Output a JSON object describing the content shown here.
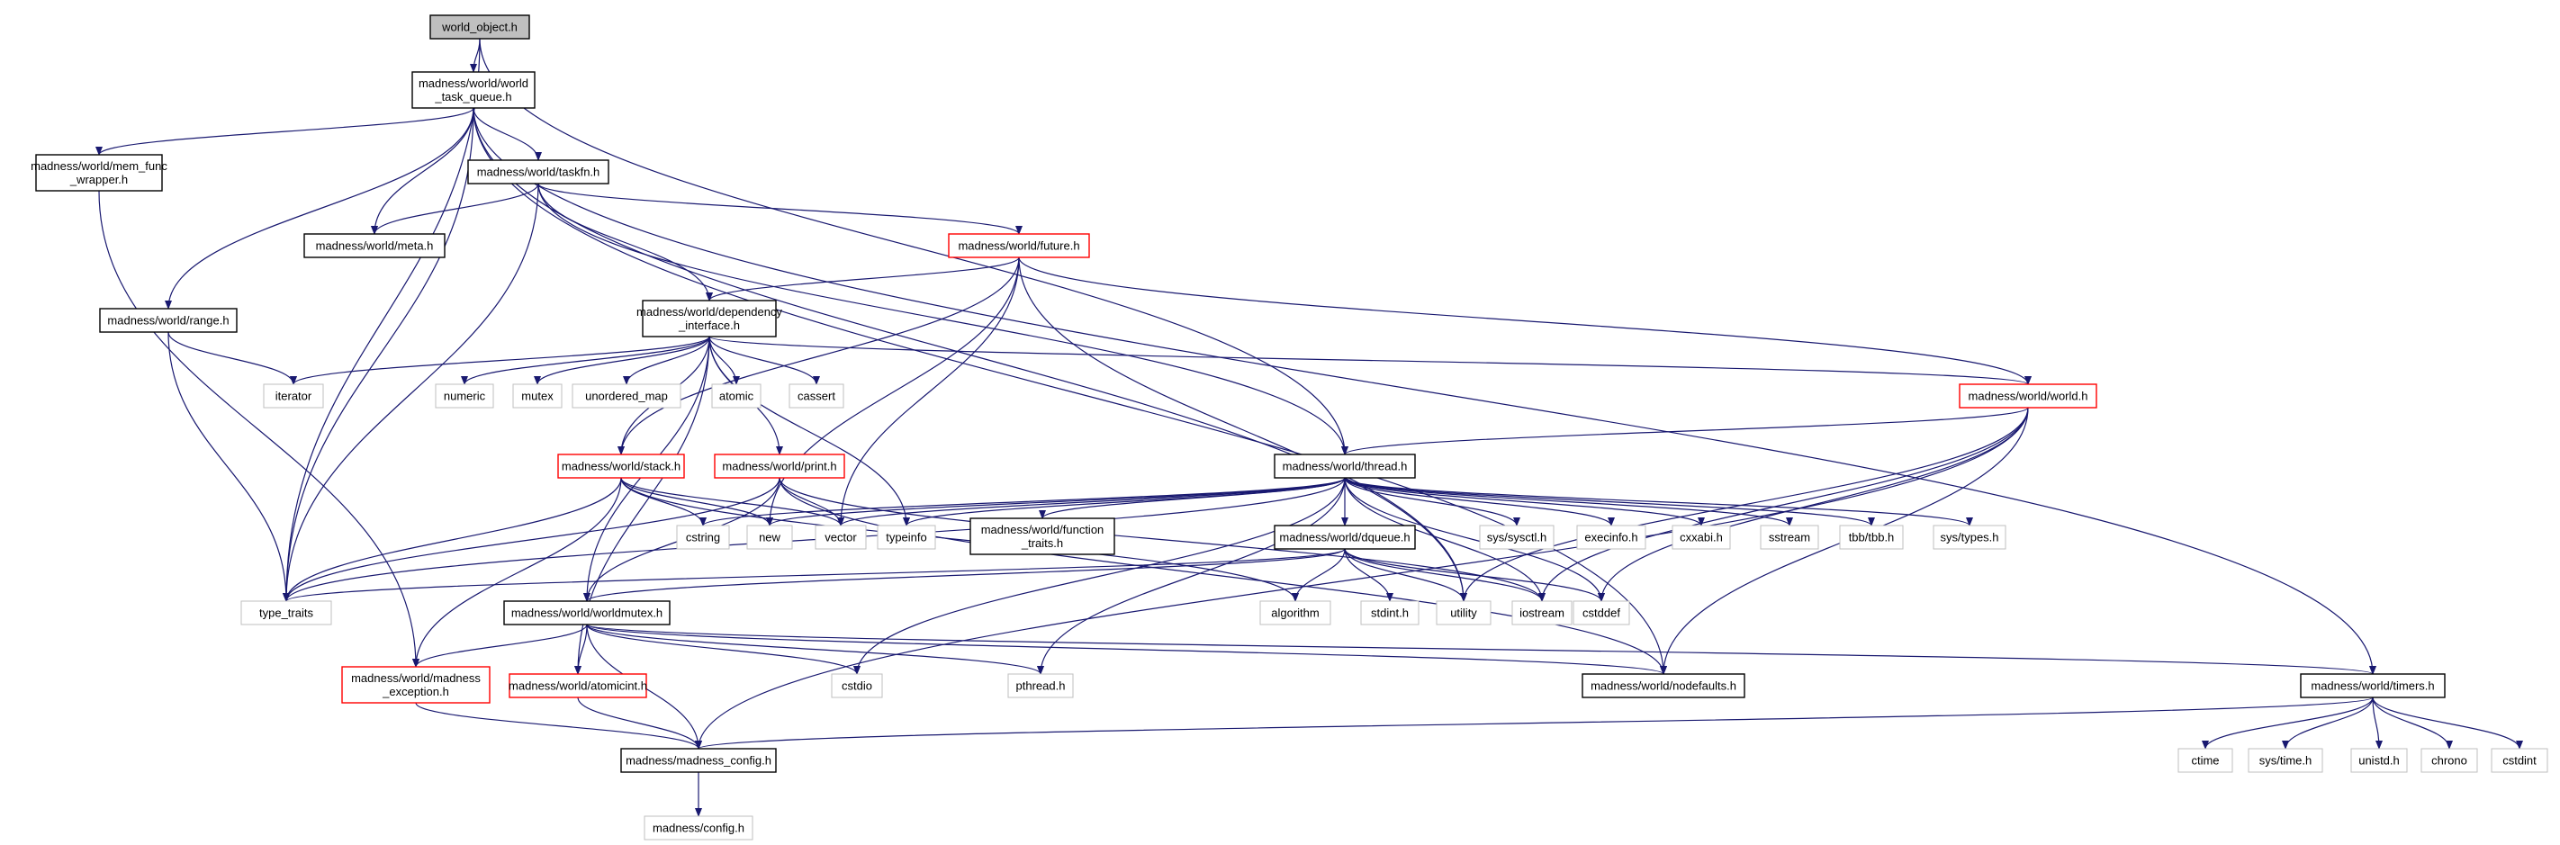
{
  "colors": {
    "edge": "#191970",
    "border_default": "#000000",
    "border_truncated": "#ff0000",
    "border_external": "#bfbfbf",
    "fill_root": "#bfbfbf",
    "fill_default": "#ffffff"
  },
  "nodes": [
    {
      "id": "world_object",
      "label": [
        "world_object.h"
      ],
      "kind": "root"
    },
    {
      "id": "task_queue",
      "label": [
        "madness/world/world",
        "_task_queue.h"
      ],
      "kind": "normal"
    },
    {
      "id": "mem_func",
      "label": [
        "madness/world/mem_func",
        "_wrapper.h"
      ],
      "kind": "normal"
    },
    {
      "id": "taskfn",
      "label": [
        "madness/world/taskfn.h"
      ],
      "kind": "normal"
    },
    {
      "id": "meta",
      "label": [
        "madness/world/meta.h"
      ],
      "kind": "normal"
    },
    {
      "id": "future",
      "label": [
        "madness/world/future.h"
      ],
      "kind": "truncated"
    },
    {
      "id": "range",
      "label": [
        "madness/world/range.h"
      ],
      "kind": "normal"
    },
    {
      "id": "dependency",
      "label": [
        "madness/world/dependency",
        "_interface.h"
      ],
      "kind": "normal"
    },
    {
      "id": "iterator",
      "label": [
        "iterator"
      ],
      "kind": "external"
    },
    {
      "id": "numeric",
      "label": [
        "numeric"
      ],
      "kind": "external"
    },
    {
      "id": "mutex",
      "label": [
        "mutex"
      ],
      "kind": "external"
    },
    {
      "id": "unordered_map",
      "label": [
        "unordered_map"
      ],
      "kind": "external"
    },
    {
      "id": "atomic",
      "label": [
        "atomic"
      ],
      "kind": "external"
    },
    {
      "id": "cassert",
      "label": [
        "cassert"
      ],
      "kind": "external"
    },
    {
      "id": "world_h",
      "label": [
        "madness/world/world.h"
      ],
      "kind": "truncated"
    },
    {
      "id": "thread",
      "label": [
        "madness/world/thread.h"
      ],
      "kind": "normal"
    },
    {
      "id": "stack",
      "label": [
        "madness/world/stack.h"
      ],
      "kind": "truncated"
    },
    {
      "id": "print",
      "label": [
        "madness/world/print.h"
      ],
      "kind": "truncated"
    },
    {
      "id": "cstring",
      "label": [
        "cstring"
      ],
      "kind": "external"
    },
    {
      "id": "new",
      "label": [
        "new"
      ],
      "kind": "external"
    },
    {
      "id": "vector",
      "label": [
        "vector"
      ],
      "kind": "external"
    },
    {
      "id": "typeinfo",
      "label": [
        "typeinfo"
      ],
      "kind": "external"
    },
    {
      "id": "function_traits",
      "label": [
        "madness/world/function",
        "_traits.h"
      ],
      "kind": "normal"
    },
    {
      "id": "dqueue",
      "label": [
        "madness/world/dqueue.h"
      ],
      "kind": "normal"
    },
    {
      "id": "sys_sysctl",
      "label": [
        "sys/sysctl.h"
      ],
      "kind": "external"
    },
    {
      "id": "execinfo",
      "label": [
        "execinfo.h"
      ],
      "kind": "external"
    },
    {
      "id": "cxxabi",
      "label": [
        "cxxabi.h"
      ],
      "kind": "external"
    },
    {
      "id": "sstream",
      "label": [
        "sstream"
      ],
      "kind": "external"
    },
    {
      "id": "tbb",
      "label": [
        "tbb/tbb.h"
      ],
      "kind": "external"
    },
    {
      "id": "sys_types",
      "label": [
        "sys/types.h"
      ],
      "kind": "external"
    },
    {
      "id": "type_traits",
      "label": [
        "type_traits"
      ],
      "kind": "external"
    },
    {
      "id": "algorithm",
      "label": [
        "algorithm"
      ],
      "kind": "external"
    },
    {
      "id": "stdint",
      "label": [
        "stdint.h"
      ],
      "kind": "external"
    },
    {
      "id": "utility",
      "label": [
        "utility"
      ],
      "kind": "external"
    },
    {
      "id": "iostream",
      "label": [
        "iostream"
      ],
      "kind": "external"
    },
    {
      "id": "cstddef",
      "label": [
        "cstddef"
      ],
      "kind": "external"
    },
    {
      "id": "worldmutex",
      "label": [
        "madness/world/worldmutex.h"
      ],
      "kind": "normal"
    },
    {
      "id": "madness_exception",
      "label": [
        "madness/world/madness",
        "_exception.h"
      ],
      "kind": "truncated"
    },
    {
      "id": "atomicint",
      "label": [
        "madness/world/atomicint.h"
      ],
      "kind": "truncated"
    },
    {
      "id": "cstdio",
      "label": [
        "cstdio"
      ],
      "kind": "external"
    },
    {
      "id": "pthread",
      "label": [
        "pthread.h"
      ],
      "kind": "external"
    },
    {
      "id": "nodefaults",
      "label": [
        "madness/world/nodefaults.h"
      ],
      "kind": "normal"
    },
    {
      "id": "timers",
      "label": [
        "madness/world/timers.h"
      ],
      "kind": "normal"
    },
    {
      "id": "madness_config",
      "label": [
        "madness/madness_config.h"
      ],
      "kind": "normal"
    },
    {
      "id": "ctime",
      "label": [
        "ctime"
      ],
      "kind": "external"
    },
    {
      "id": "sys_time",
      "label": [
        "sys/time.h"
      ],
      "kind": "external"
    },
    {
      "id": "unistd",
      "label": [
        "unistd.h"
      ],
      "kind": "external"
    },
    {
      "id": "chrono",
      "label": [
        "chrono"
      ],
      "kind": "external"
    },
    {
      "id": "cstdint",
      "label": [
        "cstdint"
      ],
      "kind": "external"
    },
    {
      "id": "config",
      "label": [
        "madness/config.h"
      ],
      "kind": "external"
    }
  ],
  "edges": [
    [
      "world_object",
      "task_queue"
    ],
    [
      "world_object",
      "type_traits"
    ],
    [
      "world_object",
      "thread"
    ],
    [
      "task_queue",
      "mem_func"
    ],
    [
      "task_queue",
      "taskfn"
    ],
    [
      "task_queue",
      "meta"
    ],
    [
      "task_queue",
      "range"
    ],
    [
      "task_queue",
      "type_traits"
    ],
    [
      "task_queue",
      "utility"
    ],
    [
      "task_queue",
      "nodefaults"
    ],
    [
      "task_queue",
      "timers"
    ],
    [
      "mem_func",
      "madness_exception"
    ],
    [
      "taskfn",
      "meta"
    ],
    [
      "taskfn",
      "future"
    ],
    [
      "taskfn",
      "dependency"
    ],
    [
      "taskfn",
      "thread"
    ],
    [
      "taskfn",
      "type_traits"
    ],
    [
      "range",
      "iterator"
    ],
    [
      "range",
      "type_traits"
    ],
    [
      "future",
      "dependency"
    ],
    [
      "future",
      "world_h"
    ],
    [
      "future",
      "stack"
    ],
    [
      "future",
      "new"
    ],
    [
      "future",
      "vector"
    ],
    [
      "future",
      "utility"
    ],
    [
      "dependency",
      "iterator"
    ],
    [
      "dependency",
      "numeric"
    ],
    [
      "dependency",
      "mutex"
    ],
    [
      "dependency",
      "unordered_map"
    ],
    [
      "dependency",
      "atomic"
    ],
    [
      "dependency",
      "cassert"
    ],
    [
      "dependency",
      "world_h"
    ],
    [
      "dependency",
      "stack"
    ],
    [
      "dependency",
      "print"
    ],
    [
      "dependency",
      "typeinfo"
    ],
    [
      "dependency",
      "worldmutex"
    ],
    [
      "dependency",
      "atomicint"
    ],
    [
      "world_h",
      "thread"
    ],
    [
      "world_h",
      "iostream"
    ],
    [
      "world_h",
      "utility"
    ],
    [
      "world_h",
      "cstddef"
    ],
    [
      "world_h",
      "nodefaults"
    ],
    [
      "world_h",
      "madness_config"
    ],
    [
      "thread",
      "cstring"
    ],
    [
      "thread",
      "new"
    ],
    [
      "thread",
      "vector"
    ],
    [
      "thread",
      "typeinfo"
    ],
    [
      "thread",
      "function_traits"
    ],
    [
      "thread",
      "dqueue"
    ],
    [
      "thread",
      "sys_sysctl"
    ],
    [
      "thread",
      "execinfo"
    ],
    [
      "thread",
      "cxxabi"
    ],
    [
      "thread",
      "sstream"
    ],
    [
      "thread",
      "tbb"
    ],
    [
      "thread",
      "sys_types"
    ],
    [
      "thread",
      "type_traits"
    ],
    [
      "thread",
      "iostream"
    ],
    [
      "thread",
      "cstddef"
    ],
    [
      "thread",
      "cstdio"
    ],
    [
      "thread",
      "pthread"
    ],
    [
      "stack",
      "cstring"
    ],
    [
      "stack",
      "new"
    ],
    [
      "stack",
      "vector"
    ],
    [
      "stack",
      "type_traits"
    ],
    [
      "stack",
      "madness_exception"
    ],
    [
      "stack",
      "algorithm"
    ],
    [
      "print",
      "iostream"
    ],
    [
      "print",
      "vector"
    ],
    [
      "print",
      "type_traits"
    ],
    [
      "print",
      "worldmutex"
    ],
    [
      "print",
      "nodefaults"
    ],
    [
      "dqueue",
      "algorithm"
    ],
    [
      "dqueue",
      "stdint"
    ],
    [
      "dqueue",
      "utility"
    ],
    [
      "dqueue",
      "iostream"
    ],
    [
      "dqueue",
      "cstddef"
    ],
    [
      "dqueue",
      "worldmutex"
    ],
    [
      "dqueue",
      "type_traits"
    ],
    [
      "worldmutex",
      "madness_exception"
    ],
    [
      "worldmutex",
      "atomicint"
    ],
    [
      "worldmutex",
      "madness_config"
    ],
    [
      "worldmutex",
      "cstdio"
    ],
    [
      "worldmutex",
      "pthread"
    ],
    [
      "worldmutex",
      "nodefaults"
    ],
    [
      "worldmutex",
      "timers"
    ],
    [
      "madness_exception",
      "madness_config"
    ],
    [
      "atomicint",
      "madness_config"
    ],
    [
      "timers",
      "madness_config"
    ],
    [
      "timers",
      "ctime"
    ],
    [
      "timers",
      "sys_time"
    ],
    [
      "timers",
      "unistd"
    ],
    [
      "timers",
      "chrono"
    ],
    [
      "timers",
      "cstdint"
    ],
    [
      "madness_config",
      "config"
    ]
  ]
}
